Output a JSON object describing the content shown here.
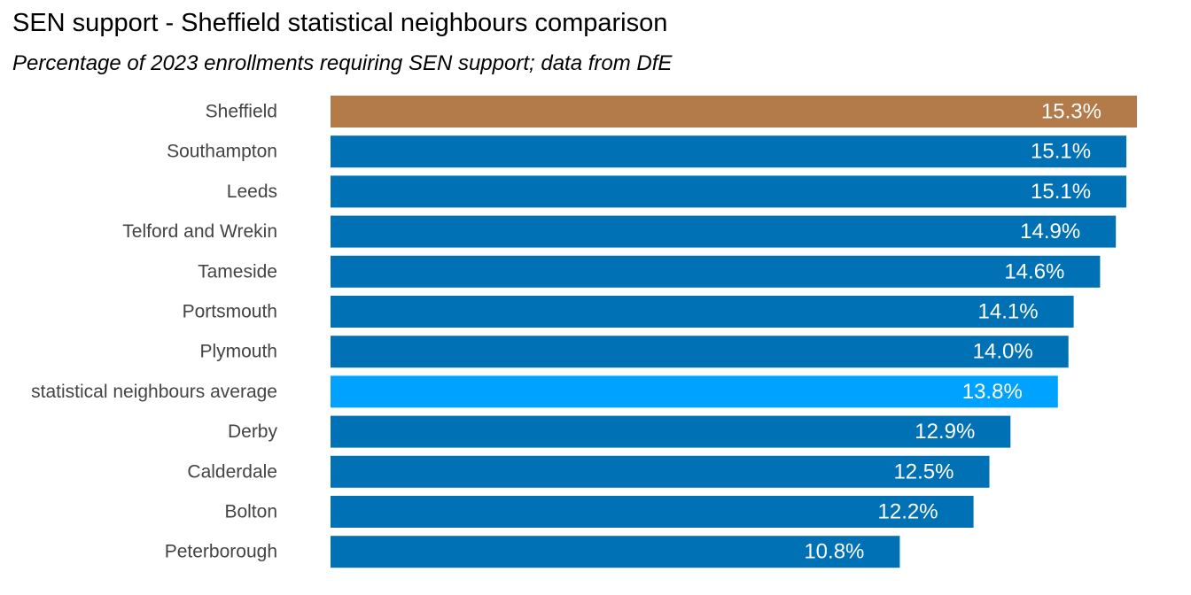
{
  "chart_data": {
    "type": "bar",
    "orientation": "horizontal",
    "title": "SEN support - Sheffield statistical neighbours comparison",
    "subtitle": "Percentage of 2023 enrollments requiring SEN support; data from DfE",
    "xlabel": "",
    "ylabel": "",
    "grid": false,
    "legend": "none",
    "xlim": [
      0,
      15.3
    ],
    "categories": [
      "Sheffield",
      "Southampton",
      "Leeds",
      "Telford and Wrekin",
      "Tameside",
      "Portsmouth",
      "Plymouth",
      "statistical neighbours average",
      "Derby",
      "Calderdale",
      "Bolton",
      "Peterborough"
    ],
    "values": [
      15.3,
      15.1,
      15.1,
      14.9,
      14.6,
      14.1,
      14.0,
      13.8,
      12.9,
      12.5,
      12.2,
      10.8
    ],
    "value_labels": [
      "15.3%",
      "15.1%",
      "15.1%",
      "14.9%",
      "14.6%",
      "14.1%",
      "14.0%",
      "13.8%",
      "12.9%",
      "12.5%",
      "12.2%",
      "10.8%"
    ],
    "bar_colors": [
      "#B37B4A",
      "#0071B4",
      "#0071B4",
      "#0071B4",
      "#0071B4",
      "#0071B4",
      "#0071B4",
      "#00A2FF",
      "#0071B4",
      "#0071B4",
      "#0071B4",
      "#0071B4"
    ]
  }
}
